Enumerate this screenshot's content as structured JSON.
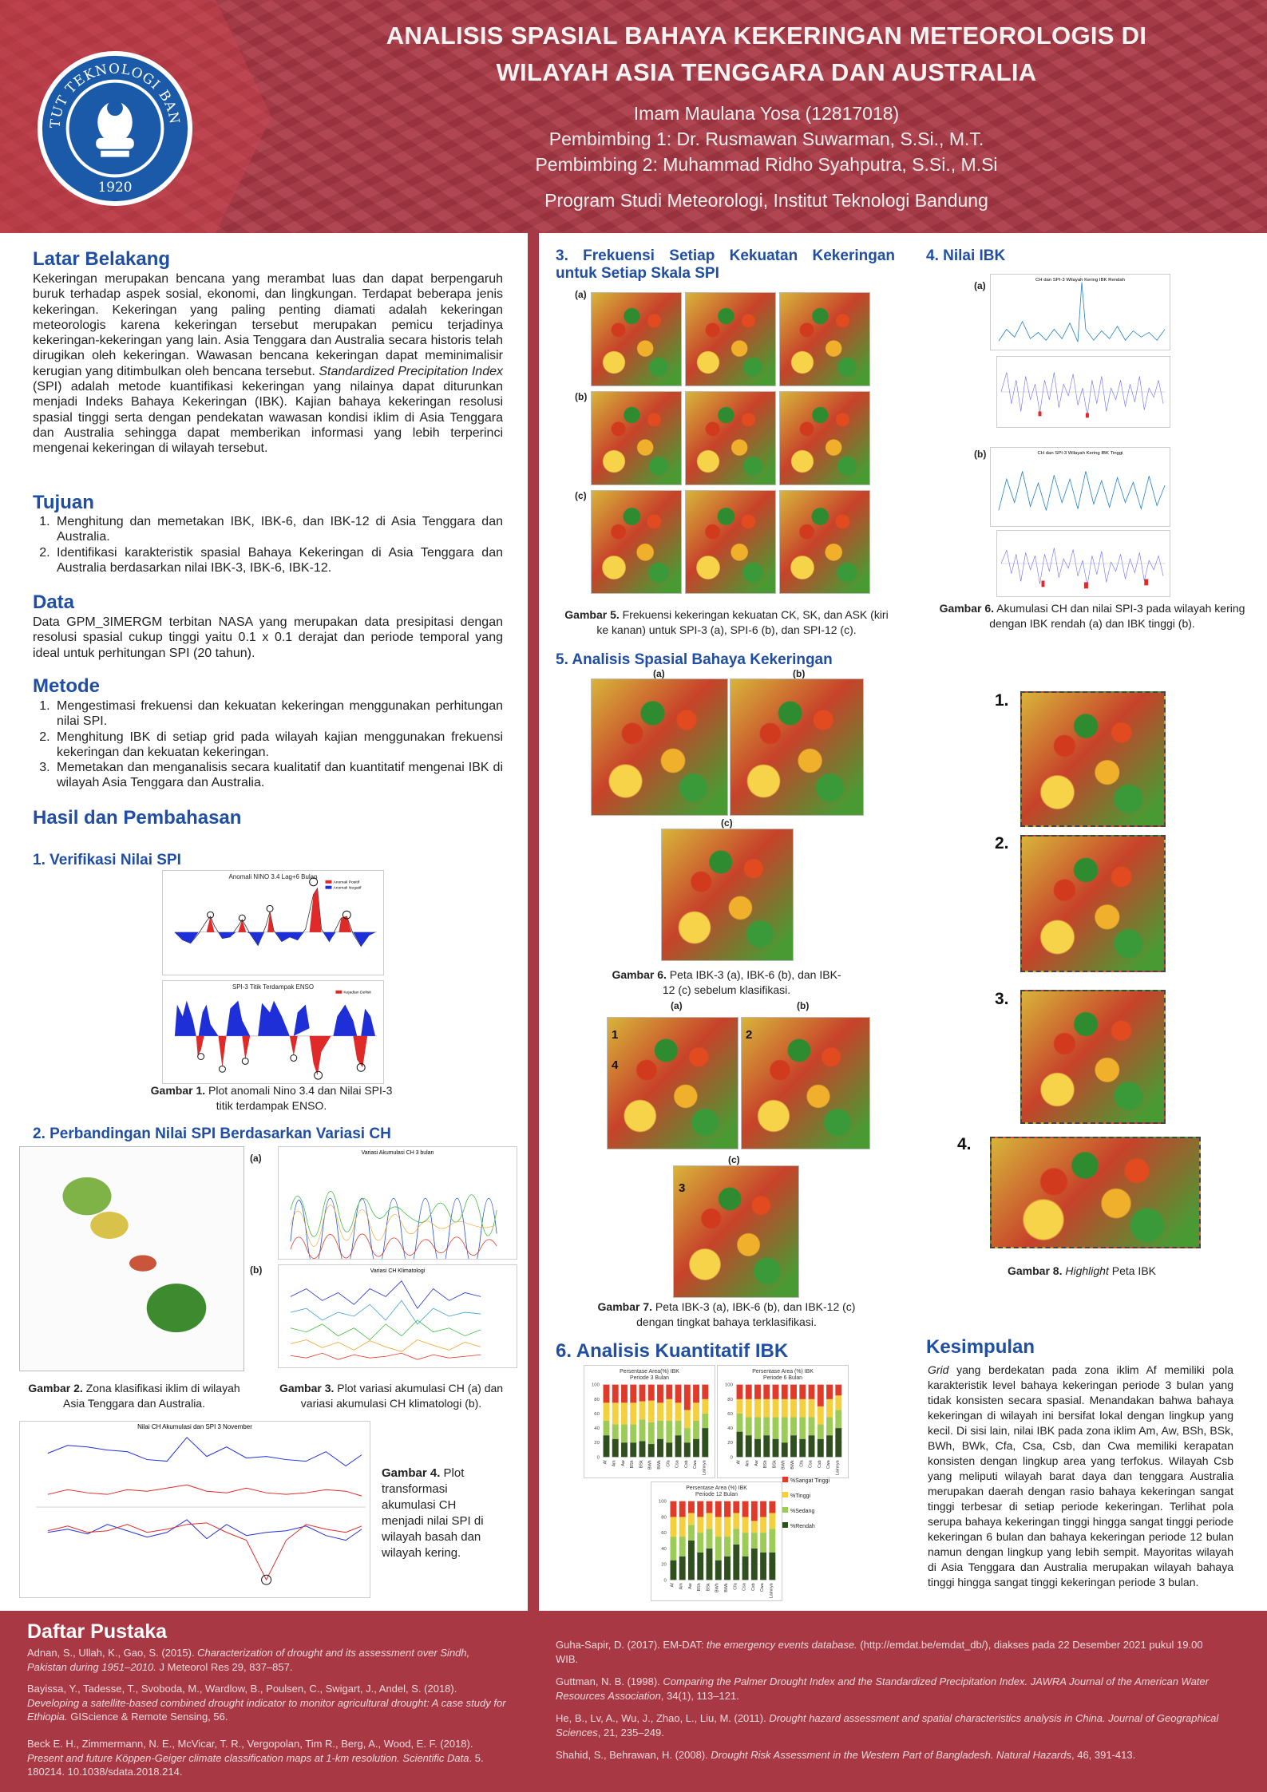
{
  "header": {
    "title_line1": "ANALISIS SPASIAL BAHAYA KEKERINGAN METEOROLOGIS DI",
    "title_line2": "WILAYAH ASIA TENGGARA DAN AUSTRALIA",
    "author": "Imam Maulana Yosa (12817018)",
    "advisor1": "Pembimbing 1: Dr. Rusmawan Suwarman, S.Si., M.T.",
    "advisor2": "Pembimbing 2: Muhammad Ridho Syahputra, S.Si., M.Si",
    "program": "Program Studi Meteorologi, Institut Teknologi Bandung",
    "logo_text": "INSTITUT TEKNOLOGI BANDUNG",
    "logo_year": "1920"
  },
  "latar": {
    "title": "Latar Belakang",
    "text_a": "Kekeringan merupakan bencana yang merambat luas dan dapat berpengaruh buruk terhadap aspek sosial, ekonomi, dan lingkungan. Terdapat beberapa jenis kekeringan. Kekeringan yang paling penting diamati adalah kekeringan meteorologis karena kekeringan tersebut merupakan pemicu terjadinya kekeringan-kekeringan yang lain. Asia Tenggara dan Australia secara historis telah dirugikan oleh kekeringan. Wawasan bencana kekeringan dapat meminimalisir kerugian yang ditimbulkan oleh bencana tersebut. ",
    "text_b": "Standardized Precipitation Index",
    "text_c": " (SPI) adalah metode kuantifikasi kekeringan yang nilainya dapat diturunkan menjadi Indeks Bahaya Kekeringan (IBK). Kajian bahaya kekeringan resolusi spasial tinggi serta dengan pendekatan wawasan kondisi iklim di Asia Tenggara dan Australia sehingga dapat memberikan informasi yang lebih terperinci mengenai kekeringan di wilayah tersebut."
  },
  "tujuan": {
    "title": "Tujuan",
    "items": [
      "Menghitung dan memetakan IBK, IBK-6, dan IBK-12 di Asia Tenggara dan Australia.",
      "Identifikasi karakteristik spasial Bahaya Kekeringan di Asia Tenggara dan Australia berdasarkan nilai IBK-3, IBK-6, IBK-12."
    ]
  },
  "data_sec": {
    "title": "Data",
    "text": "Data GPM_3IMERGM terbitan NASA yang merupakan data presipitasi dengan resolusi spasial cukup tinggi yaitu 0.1 x 0.1 derajat dan periode temporal yang ideal untuk perhitungan SPI (20 tahun)."
  },
  "metode": {
    "title": "Metode",
    "items": [
      "Mengestimasi frekuensi dan kekuatan kekeringan menggunakan perhitungan nilai SPI.",
      "Menghitung IBK di setiap grid pada wilayah kajian menggunakan frekuensi kekeringan dan kekuatan kekeringan.",
      "Memetakan dan menganalisis secara kualitatif dan kuantitatif mengenai IBK di wilayah Asia Tenggara dan Australia."
    ]
  },
  "hasil": {
    "title": "Hasil dan Pembahasan",
    "s1": "1. Verifikasi Nilai SPI",
    "s2": "2. Perbandingan Nilai SPI Berdasarkan Variasi CH",
    "s3": "3. Frekuensi Setiap Kekuatan Kekeringan untuk Setiap Skala SPI",
    "s4": "4. Nilai IBK",
    "s5": "5. Analisis Spasial Bahaya Kekeringan",
    "s6": "6. Analisis Kuantitatif IBK"
  },
  "figs": {
    "g1_bold": "Gambar 1.",
    "g1_text": " Plot anomali Nino 3.4 dan Nilai SPI-3 titik terdampak ENSO.",
    "g1_t1": "Anomali NINO 3.4 Lag+6 Bulan",
    "g1_t2": "SPI-3 Titik Terdampak ENSO",
    "g1_leg1": "Anomali Positif",
    "g1_leg2": "Anomali Negatif",
    "g1_leg3": "Kejadian Defisit",
    "g2_bold": "Gambar 2.",
    "g2_text": " Zona klasifikasi iklim di wilayah Asia Tenggara dan Australia.",
    "g3_bold": "Gambar 3.",
    "g3_text": " Plot variasi akumulasi CH (a) dan variasi akumulasi CH klimatologi (b).",
    "g3_t1": "Variasi Akumulasi CH 3 bulan",
    "g3_t2": "Variasi CH Klimatologi",
    "g4_bold": "Gambar 4.",
    "g4_text": " Plot transformasi akumulasi CH menjadi nilai SPI di wilayah basah dan wilayah kering.",
    "g4_t1": "Nilai CH Akumulasi dan SPI 3 November",
    "g5_bold": "Gambar 5.",
    "g5_text": " Frekuensi kekeringan kekuatan CK, SK, dan ASK (kiri ke kanan) untuk SPI-3 (a), SPI-6 (b), dan SPI-12 (c).",
    "g6_bold": "Gambar 6.",
    "g6_text": " Akumulasi CH dan nilai SPI-3 pada wilayah kering dengan IBK rendah (a) dan IBK tinggi (b).",
    "g6_t1": "CH dan SPI-3 Wilayah Kering IBK Rendah",
    "g6_t2": "CH dan SPI-3 Wilayah Kering IBK Tinggi",
    "g6b_bold": "Gambar 6.",
    "g6b_text": " Peta IBK-3 (a), IBK-6 (b), dan IBK-12 (c) sebelum klasifikasi.",
    "g6b_p1": "Periode 12 Bulan",
    "g6b_p2": "Periode 6 Bulan",
    "g6b_p3": "Periode 3 Bulan",
    "g7_bold": "Gambar 7.",
    "g7_text": "  Peta IBK-3 (a), IBK-6 (b), dan IBK-12 (c) dengan tingkat bahaya terklasifikasi.",
    "g7_p1": "Periode 3 Bulan",
    "g7_p2": "Periode 6 Bulan",
    "g7_p3": "Periode 12 Bulan",
    "g8_bold": "Gambar 8.",
    "g8_ital": "Highlight",
    "g8_text": " Peta IBK",
    "pa_t1": "Persentase Area(%) IBK",
    "pa_t1b": "Periode 3 Bulan",
    "pa_t2": "Persentase Area (%) IBK",
    "pa_t2b": "Periode 6 Bulan",
    "pa_t3": "Persentase Area (%) IBK",
    "pa_t3b": "Periode 12 Bulan",
    "pa_leg": [
      "%Sangat Tinggi",
      "%Tinggi",
      "%Sedang",
      "%Rendah"
    ],
    "lbl_a": "(a)",
    "lbl_b": "(b)",
    "lbl_c": "(c)",
    "n1": "1.",
    "n2": "2.",
    "n3": "3.",
    "n4": "4.",
    "m1": "1",
    "m2": "2",
    "m3": "3",
    "m4": "4"
  },
  "kesimpulan": {
    "title": "Kesimpulan",
    "ital": "Grid",
    "text": " yang berdekatan pada zona iklim Af memiliki pola karakteristik level bahaya kekeringan periode 3 bulan yang tidak konsisten secara spasial. Menandakan bahwa bahaya kekeringan di wilayah ini bersifat lokal dengan lingkup yang kecil.  Di sisi lain, nilai IBK pada zona iklim Am, Aw, BSh, BSk, BWh, BWk, Cfa, Csa, Csb, dan Cwa memiliki kerapatan konsisten dengan lingkup area yang terfokus.   Wilayah Csb yang meliputi wilayah barat daya dan tenggara Australia merupakan daerah dengan rasio bahaya kekeringan sangat tinggi terbesar di setiap periode kekeringan.   Terlihat pola serupa bahaya kekeringan tinggi hingga sangat tinggi periode kekeringan 6 bulan dan bahaya kekeringan periode 12 bulan namun dengan lingkup yang lebih sempit. Mayoritas wilayah di Asia Tenggara dan Australia merupakan wilayah bahaya tinggi hingga sangat tinggi kekeringan periode 3 bulan."
  },
  "chart_data": [
    {
      "type": "bar",
      "title": "Persentase Area(%) IBK Periode 3 Bulan",
      "ylim": [
        0,
        100
      ],
      "categories": [
        "Af",
        "Am",
        "Aw",
        "BSh",
        "BSk",
        "BWh",
        "BWk",
        "Cfa",
        "Csa",
        "Csb",
        "Cwa",
        "Lainnya"
      ],
      "series": [
        {
          "name": "%Rendah",
          "values": [
            30,
            25,
            20,
            20,
            22,
            18,
            25,
            20,
            30,
            20,
            25,
            40
          ]
        },
        {
          "name": "%Sedang",
          "values": [
            20,
            20,
            25,
            25,
            30,
            30,
            25,
            30,
            20,
            20,
            25,
            20
          ]
        },
        {
          "name": "%Tinggi",
          "values": [
            25,
            30,
            30,
            30,
            25,
            30,
            25,
            30,
            25,
            25,
            25,
            20
          ]
        },
        {
          "name": "%Sangat Tinggi",
          "values": [
            25,
            25,
            25,
            25,
            23,
            22,
            25,
            20,
            25,
            35,
            25,
            20
          ]
        }
      ]
    },
    {
      "type": "bar",
      "title": "Persentase Area (%) IBK Periode 6 Bulan",
      "ylim": [
        0,
        100
      ],
      "categories": [
        "Af",
        "Am",
        "Aw",
        "BSh",
        "BSk",
        "BWh",
        "BWk",
        "Cfa",
        "Csa",
        "Csb",
        "Cwa",
        "Lainnya"
      ],
      "series": [
        {
          "name": "%Rendah",
          "values": [
            35,
            30,
            25,
            30,
            25,
            20,
            30,
            25,
            30,
            25,
            30,
            40
          ]
        },
        {
          "name": "%Sedang",
          "values": [
            25,
            25,
            30,
            25,
            30,
            35,
            25,
            30,
            25,
            20,
            25,
            25
          ]
        },
        {
          "name": "%Tinggi",
          "values": [
            20,
            25,
            25,
            25,
            25,
            25,
            25,
            25,
            25,
            25,
            25,
            20
          ]
        },
        {
          "name": "%Sangat Tinggi",
          "values": [
            20,
            20,
            20,
            20,
            20,
            20,
            20,
            20,
            20,
            30,
            20,
            15
          ]
        }
      ]
    },
    {
      "type": "bar",
      "title": "Persentase Area (%) IBK Periode 12 Bulan",
      "ylim": [
        0,
        100
      ],
      "categories": [
        "Af",
        "Am",
        "Aw",
        "BSh",
        "BSk",
        "BWh",
        "BWk",
        "Cfa",
        "Csa",
        "Csb",
        "Cwa",
        "Lainnya"
      ],
      "series": [
        {
          "name": "%Rendah",
          "values": [
            25,
            30,
            50,
            35,
            40,
            25,
            30,
            45,
            30,
            40,
            35,
            35
          ]
        },
        {
          "name": "%Sedang",
          "values": [
            30,
            25,
            20,
            25,
            25,
            30,
            25,
            20,
            30,
            20,
            25,
            30
          ]
        },
        {
          "name": "%Tinggi",
          "values": [
            25,
            25,
            15,
            20,
            20,
            25,
            25,
            20,
            20,
            15,
            20,
            20
          ]
        },
        {
          "name": "%Sangat Tinggi",
          "values": [
            20,
            20,
            15,
            20,
            15,
            20,
            20,
            15,
            20,
            25,
            20,
            15
          ]
        }
      ]
    }
  ],
  "refs": {
    "title": "Daftar Pustaka",
    "r1a": "Adnan, S., Ullah, K., Gao, S. (2015). ",
    "r1b": "Characterization of drought and its assessment over Sindh, Pakistan during 1951–2010.",
    "r1c": " J Meteorol Res 29, 837–857.",
    "r2a": "Bayissa, Y., Tadesse, T., Svoboda, M., Wardlow, B., Poulsen, C., Swigart, J., Andel, S. (2018). ",
    "r2b": "Developing a satellite-based combined drought indicator to monitor agricultural drought: A case study for Ethiopia.",
    "r2c": " GIScience & Remote Sensing, 56.",
    "r3a": "Beck E. H., Zimmermann, N. E., McVicar, T. R., Vergopolan, Tim R., Berg, A., Wood, E. F. (2018). ",
    "r3b": "Present and future Köppen-Geiger climate classification maps at 1-km resolution. Scientific Data",
    "r3c": ". 5. 180214. 10.1038/sdata.2018.214.",
    "r4a": "Guha-Sapir, D. (2017). EM-DAT: ",
    "r4b": "the emergency events database.",
    "r4c": " (http://emdat.be/emdat_db/), diakses pada 22 Desember 2021 pukul 19.00 WIB.",
    "r5a": "Guttman, N. B. (1998). ",
    "r5b": "Comparing the Palmer Drought Index and the Standardized Precipitation Index. JAWRA Journal of the American Water Resources Association",
    "r5c": ", 34(1), 113–121.",
    "r6a": "He, B., Lv, A., Wu, J., Zhao, L., Liu, M. (2011). ",
    "r6b": "Drought hazard assessment and spatial characteristics analysis in China. Journal of Geographical Sciences",
    "r6c": ", 21, 235–249.",
    "r7a": "Shahid, S., Behrawan, H. (2008). ",
    "r7b": "Drought Risk Assessment in the Western Part of Bangladesh. Natural Hazards",
    "r7c": ", 46, 391-413."
  },
  "colors": {
    "brand": "#a93845",
    "heading": "#1f4ea3",
    "rendah": "#2f4f1f",
    "sedang": "#9ccc57",
    "tinggi": "#f4d03f",
    "sangat_tinggi": "#e03a2a"
  }
}
